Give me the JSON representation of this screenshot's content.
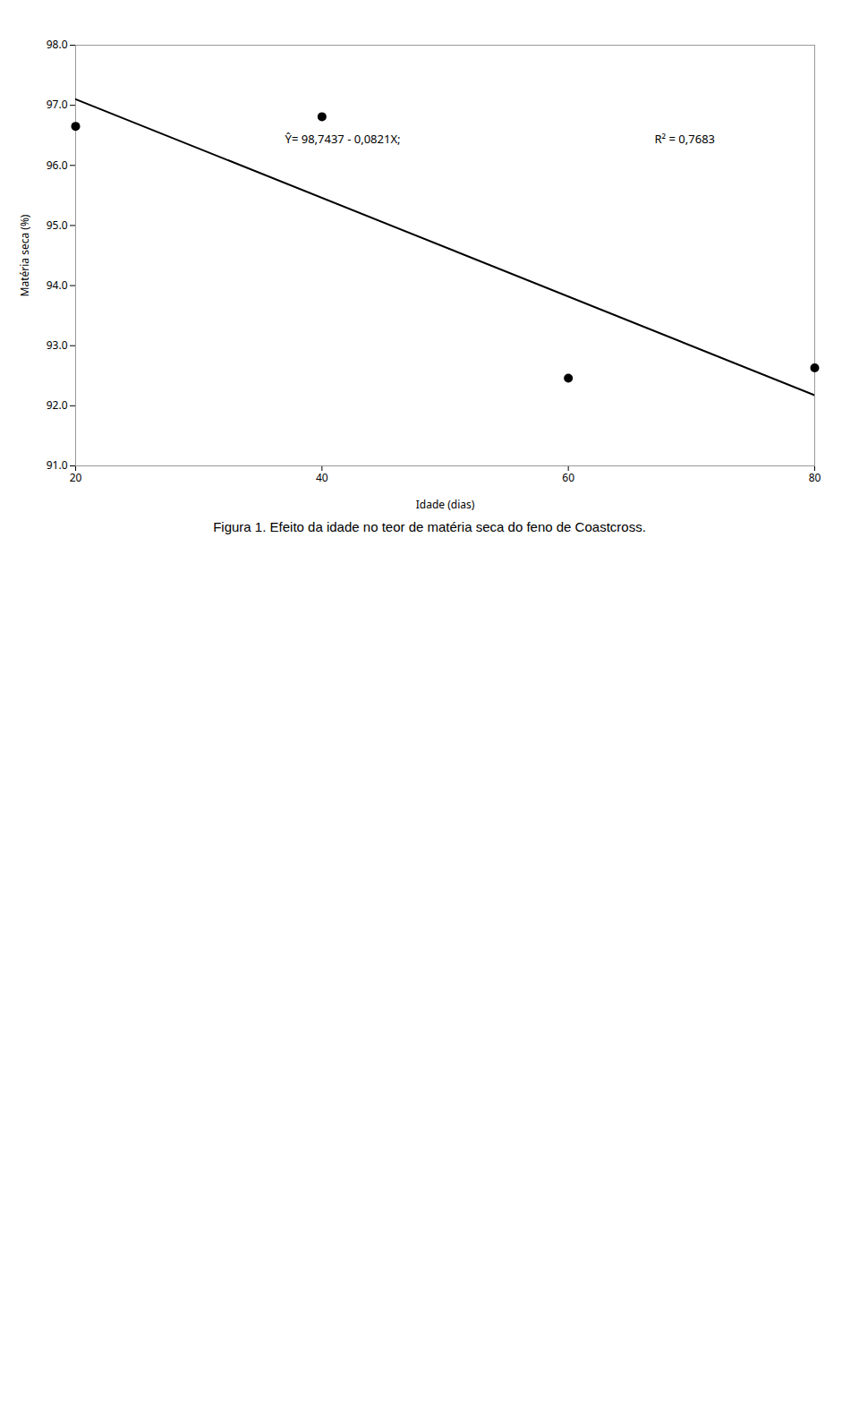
{
  "chart_data": {
    "type": "scatter",
    "title": "Figura 1. Efeito da idade no teor de matéria seca do feno de Coastcross.",
    "xlabel": "Idade (dias)",
    "ylabel": "Matéria seca (%)",
    "series": [
      {
        "type": "line",
        "x": [
          20,
          80
        ],
        "values": [
          97.1017,
          92.1757
        ],
        "color": "#000000"
      },
      {
        "type": "scatter",
        "x": [
          20,
          40,
          60,
          80
        ],
        "values": [
          96.65,
          96.81,
          92.46,
          92.63
        ],
        "color": "#000000"
      }
    ],
    "annotations": [
      {
        "text": "Ŷ= 98,7437 - 0,0821X;",
        "x": 37,
        "y": 96.55
      },
      {
        "text": "R² = 0,7683",
        "x": 67,
        "y": 96.55
      }
    ],
    "xlim": [
      20,
      80
    ],
    "xticks": [
      20,
      40,
      60,
      80
    ],
    "ylim": [
      91,
      98
    ],
    "yticks": [
      91,
      92,
      93,
      94,
      95,
      96,
      97,
      98
    ],
    "grid": false
  }
}
